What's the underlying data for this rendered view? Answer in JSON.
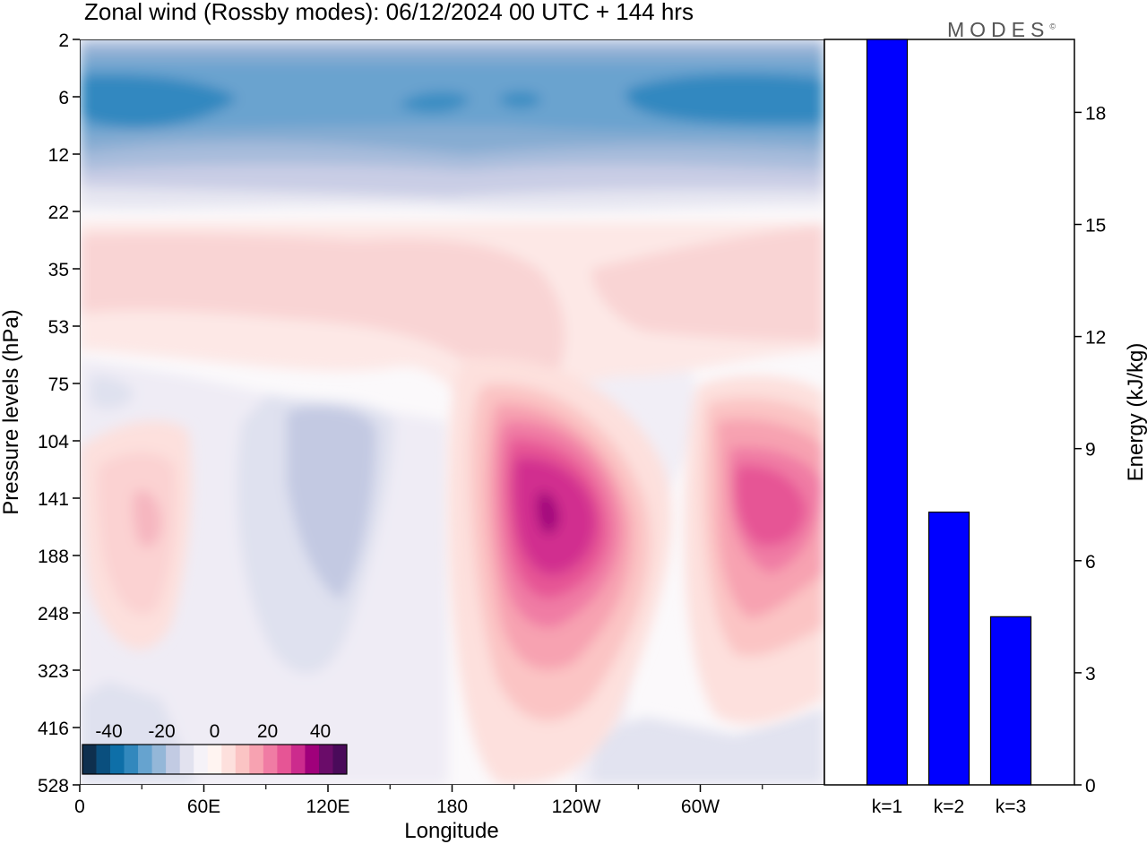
{
  "header": {
    "title": "Zonal wind (Rossby modes):  06/12/2024  00 UTC  + 144 hrs",
    "brand": "MODES",
    "brand_mark": "©"
  },
  "chart_data": [
    {
      "type": "heatmap",
      "title": "Zonal wind (Rossby modes):  06/12/2024  00 UTC  + 144 hrs",
      "xlabel": "Longitude",
      "ylabel": "Pressure levels (hPa)",
      "x_tick_labels": [
        "0",
        "60E",
        "120E",
        "180",
        "120W",
        "60W"
      ],
      "x_tick_values_deg": [
        0,
        60,
        120,
        180,
        240,
        300
      ],
      "xlim_deg": [
        0,
        360
      ],
      "y_tick_labels": [
        "2",
        "6",
        "12",
        "22",
        "35",
        "53",
        "75",
        "104",
        "141",
        "188",
        "248",
        "323",
        "416",
        "528"
      ],
      "y_scale": "level index (top to bottom)",
      "grid": false,
      "colorbar": {
        "placement": "bottom-left",
        "labels": [
          "-40",
          "-20",
          "0",
          "20",
          "40"
        ],
        "label_values": [
          -40,
          -20,
          0,
          20,
          40
        ],
        "range": [
          -50,
          50
        ],
        "colors": [
          "#0e2f4e",
          "#0a4f7e",
          "#0e6fa8",
          "#3288bd",
          "#66a3cf",
          "#94b7d8",
          "#c2cbe3",
          "#e2e2ef",
          "#f5f2f8",
          "#fff4f1",
          "#fde0dd",
          "#fbc4c4",
          "#f7a2b1",
          "#f07ca4",
          "#e65595",
          "#cc2b8d",
          "#a0007b",
          "#6a0c69",
          "#4a0a5a"
        ]
      },
      "features": [
        {
          "kind": "easterly-band",
          "label": "negative",
          "lon_range": [
            0,
            360
          ],
          "levels": [
            "2",
            "12"
          ],
          "peak": -33
        },
        {
          "kind": "westerly-max",
          "label": "positive",
          "lon_center": 225,
          "level": "141",
          "peak": 38
        },
        {
          "kind": "westerly-max",
          "label": "positive",
          "lon_center": 330,
          "level": "141",
          "peak": 27
        },
        {
          "kind": "westerly-max",
          "label": "positive",
          "lon_center": 32,
          "level": "141",
          "peak": 10
        }
      ]
    },
    {
      "type": "bar",
      "categories": [
        "k=1",
        "k=2",
        "k=3"
      ],
      "values": [
        20.3,
        7.3,
        4.5
      ],
      "xlabel": "",
      "ylabel": "Energy (kJ/kg)",
      "ylim": [
        0,
        20
      ],
      "y_ticks": [
        0,
        3,
        6,
        9,
        12,
        15,
        18
      ],
      "bar_color": "#0000ff",
      "axis_side": "right",
      "grid": false
    }
  ]
}
